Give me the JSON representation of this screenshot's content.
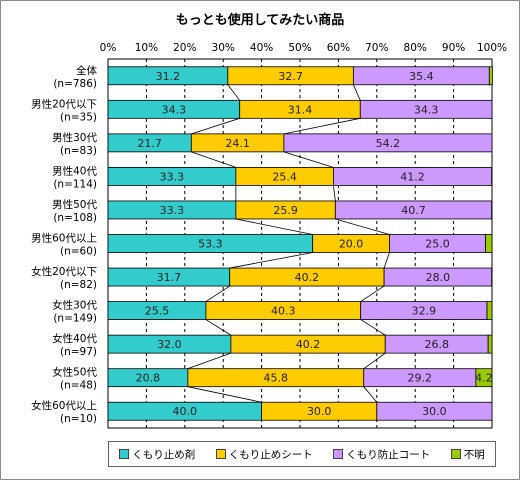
{
  "chart_data": {
    "type": "bar",
    "orientation": "horizontal-stacked-100",
    "title": "もっとも使用してみたい商品",
    "x_ticks": [
      "0%",
      "10%",
      "20%",
      "30%",
      "40%",
      "50%",
      "60%",
      "70%",
      "80%",
      "90%",
      "100%"
    ],
    "xlim": [
      0,
      100
    ],
    "grid": true,
    "legend_position": "bottom",
    "categories": [
      {
        "name": "全体",
        "n": "(n=786)"
      },
      {
        "name": "男性20代以下",
        "n": "(n=35)"
      },
      {
        "name": "男性30代",
        "n": "(n=83)"
      },
      {
        "name": "男性40代",
        "n": "(n=114)"
      },
      {
        "name": "男性50代",
        "n": "(n=108)"
      },
      {
        "name": "男性60代以上",
        "n": "(n=60)"
      },
      {
        "name": "女性20代以下",
        "n": "(n=82)"
      },
      {
        "name": "女性30代",
        "n": "(n=149)"
      },
      {
        "name": "女性40代",
        "n": "(n=97)"
      },
      {
        "name": "女性50代",
        "n": "(n=48)"
      },
      {
        "name": "女性60代以上",
        "n": "(n=10)"
      }
    ],
    "series": [
      {
        "name": "くもり止め剤",
        "color": "#33cccc",
        "values": [
          31.2,
          34.3,
          21.7,
          33.3,
          33.3,
          53.3,
          31.7,
          25.5,
          32.0,
          20.8,
          40.0
        ]
      },
      {
        "name": "くもり止めシート",
        "color": "#ffcc00",
        "values": [
          32.7,
          31.4,
          24.1,
          25.4,
          25.9,
          20.0,
          40.2,
          40.3,
          40.2,
          45.8,
          30.0
        ]
      },
      {
        "name": "くもり防止コート",
        "color": "#cc99ff",
        "values": [
          35.4,
          34.3,
          54.2,
          41.2,
          40.7,
          25.0,
          28.0,
          32.9,
          26.8,
          29.2,
          30.0
        ]
      },
      {
        "name": "不明",
        "color": "#99cc00",
        "values": [
          0.8,
          0.0,
          0.0,
          0.0,
          0.0,
          1.7,
          0.0,
          1.3,
          1.0,
          4.2,
          0.0
        ]
      }
    ],
    "value_labels": [
      [
        "31.2",
        "32.7",
        "35.4",
        ""
      ],
      [
        "34.3",
        "31.4",
        "34.3",
        ""
      ],
      [
        "21.7",
        "24.1",
        "54.2",
        ""
      ],
      [
        "33.3",
        "25.4",
        "41.2",
        ""
      ],
      [
        "33.3",
        "25.9",
        "40.7",
        ""
      ],
      [
        "53.3",
        "20.0",
        "25.0",
        ""
      ],
      [
        "31.7",
        "40.2",
        "28.0",
        ""
      ],
      [
        "25.5",
        "40.3",
        "32.9",
        ""
      ],
      [
        "32.0",
        "40.2",
        "26.8",
        ""
      ],
      [
        "20.8",
        "45.8",
        "29.2",
        "4.2"
      ],
      [
        "40.0",
        "30.0",
        "30.0",
        ""
      ]
    ]
  }
}
